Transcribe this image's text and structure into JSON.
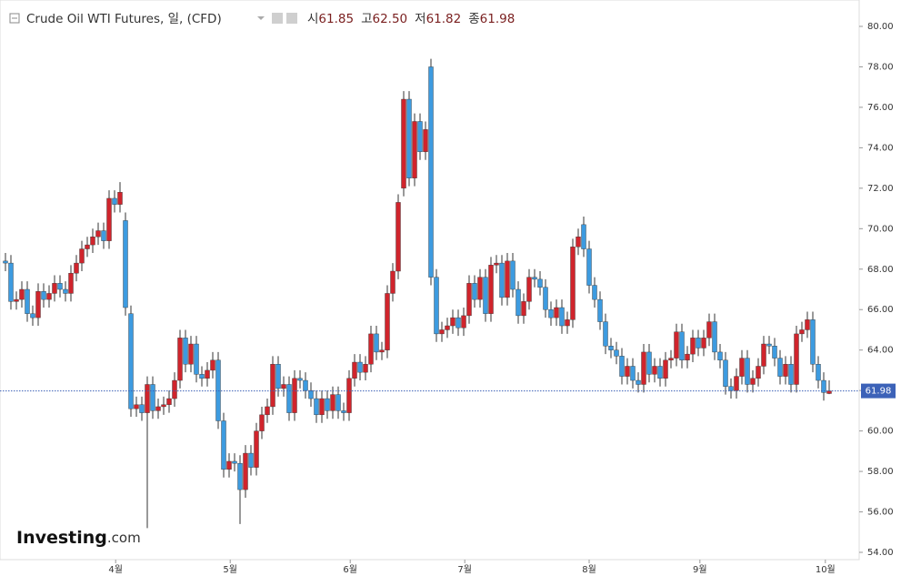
{
  "chart_data": {
    "type": "candlestick",
    "title": "Crude Oil WTI Futures, 일, (CFD)",
    "last_prefix": {
      "open": "시",
      "high": "고",
      "low": "저",
      "close": "종"
    },
    "last_labels": {
      "open": "61.85",
      "high": "62.50",
      "low": "61.82",
      "close": "61.98"
    },
    "logo": {
      "main": "Investing",
      "suffix": ".com"
    },
    "up_color": "#d0242c",
    "down_color": "#3d9be0",
    "xlim": [
      -1,
      156.5
    ],
    "xticks": [
      {
        "value": 20.2,
        "label": "4월"
      },
      {
        "value": 41.2,
        "label": "5월"
      },
      {
        "value": 63.2,
        "label": "6월"
      },
      {
        "value": 84.2,
        "label": "7월"
      },
      {
        "value": 107,
        "label": "8월"
      },
      {
        "value": 127.3,
        "label": "9월"
      },
      {
        "value": 150.3,
        "label": "10월"
      }
    ],
    "ylim": [
      54,
      80
    ],
    "yticks": [
      {
        "value": 54,
        "label": "54.00"
      },
      {
        "value": 56,
        "label": "56.00"
      },
      {
        "value": 58,
        "label": "58.00"
      },
      {
        "value": 60,
        "label": "60.00"
      },
      {
        "value": 62,
        "label": "62.00"
      },
      {
        "value": 64,
        "label": "64.00"
      },
      {
        "value": 66,
        "label": "66.00"
      },
      {
        "value": 68,
        "label": "68.00"
      },
      {
        "value": 70,
        "label": "70.00"
      },
      {
        "value": 72,
        "label": "72.00"
      },
      {
        "value": 74,
        "label": "74.00"
      },
      {
        "value": 76,
        "label": "76.00"
      },
      {
        "value": 78,
        "label": "78.00"
      },
      {
        "value": 80,
        "label": "80.00"
      }
    ],
    "open": [
      68.4,
      68.3,
      66.4,
      66.5,
      67.0,
      65.8,
      65.6,
      66.9,
      66.5,
      66.8,
      67.3,
      67.0,
      66.8,
      67.8,
      68.3,
      69.0,
      69.2,
      69.6,
      69.9,
      69.4,
      71.5,
      71.2,
      70.4,
      65.8,
      61.1,
      61.3,
      60.9,
      62.3,
      61.0,
      61.2,
      61.3,
      61.6,
      62.5,
      64.6,
      63.3,
      64.3,
      62.8,
      62.6,
      63.0,
      63.5,
      60.5,
      58.1,
      58.5,
      58.4,
      57.1,
      58.9,
      58.2,
      60.0,
      60.8,
      61.2,
      63.3,
      62.1,
      62.3,
      60.9,
      62.6,
      62.5,
      62.0,
      61.6,
      60.8,
      61.6,
      61.0,
      61.8,
      61.0,
      60.9,
      62.6,
      63.4,
      62.9,
      63.3,
      64.8,
      63.9,
      64.0,
      66.8,
      67.9,
      72.0,
      76.4,
      72.5,
      75.3,
      73.8,
      78.0,
      67.6,
      64.8,
      65.0,
      65.2,
      65.6,
      65.1,
      65.7,
      67.3,
      66.5,
      67.6,
      65.8,
      68.2,
      68.3,
      66.6,
      68.4,
      67.0,
      65.7,
      66.4,
      67.6,
      67.5,
      67.1,
      66.0,
      65.6,
      66.1,
      65.2,
      65.5,
      69.1,
      70.2,
      69.0,
      67.2,
      66.5,
      65.4,
      64.2,
      64.0,
      63.7,
      62.7,
      63.2,
      62.5,
      62.3,
      63.9,
      62.8,
      63.2,
      62.6,
      63.5,
      63.6,
      64.9,
      63.5,
      63.8,
      64.6,
      64.1,
      64.6,
      65.4,
      63.9,
      63.5,
      62.2,
      62.0,
      62.7,
      63.6,
      62.3,
      62.6,
      63.2,
      64.3,
      64.2,
      63.6,
      62.7,
      63.3,
      62.3,
      64.8,
      65.0,
      65.5,
      63.3,
      62.5,
      61.85
    ],
    "high": [
      68.8,
      68.7,
      66.9,
      67.4,
      67.4,
      66.2,
      67.3,
      67.3,
      67.2,
      67.7,
      67.7,
      67.4,
      68.2,
      68.7,
      69.4,
      69.6,
      70.0,
      70.3,
      70.3,
      71.9,
      71.9,
      72.3,
      70.8,
      66.2,
      61.7,
      61.7,
      62.7,
      62.7,
      61.6,
      61.7,
      62.0,
      62.9,
      65.0,
      65.0,
      64.7,
      64.7,
      63.2,
      63.4,
      63.9,
      63.9,
      60.9,
      58.9,
      58.9,
      58.8,
      59.3,
      59.3,
      60.4,
      61.2,
      61.6,
      63.7,
      63.7,
      62.7,
      62.7,
      63.0,
      63.0,
      62.9,
      62.4,
      62.0,
      62.0,
      62.0,
      62.2,
      62.2,
      61.4,
      63.0,
      63.8,
      63.8,
      63.7,
      65.2,
      65.2,
      64.4,
      67.2,
      68.3,
      71.7,
      76.8,
      76.8,
      75.7,
      75.7,
      75.3,
      78.4,
      68.0,
      65.4,
      65.6,
      66.0,
      66.0,
      66.1,
      67.7,
      67.7,
      68.0,
      68.0,
      68.6,
      68.7,
      68.7,
      68.8,
      68.8,
      67.4,
      66.8,
      68.0,
      68.0,
      67.9,
      67.5,
      66.4,
      66.5,
      66.5,
      65.9,
      69.5,
      70.0,
      70.6,
      69.4,
      67.6,
      66.9,
      65.8,
      64.6,
      64.4,
      64.1,
      63.6,
      63.6,
      62.9,
      64.3,
      64.3,
      63.6,
      63.6,
      63.9,
      64.0,
      65.3,
      65.3,
      64.2,
      65.0,
      65.0,
      65.0,
      65.8,
      65.8,
      64.3,
      63.9,
      62.6,
      63.1,
      64.0,
      64.0,
      63.0,
      63.6,
      64.7,
      64.7,
      64.6,
      64.0,
      63.7,
      63.7,
      65.2,
      65.4,
      65.9,
      65.9,
      63.7,
      62.9,
      62.5
    ],
    "low": [
      67.9,
      66.0,
      66.0,
      66.1,
      65.4,
      65.2,
      65.2,
      66.1,
      66.1,
      66.4,
      66.6,
      66.4,
      66.4,
      67.4,
      67.9,
      68.6,
      68.8,
      69.2,
      69.0,
      69.0,
      70.8,
      70.8,
      65.7,
      60.7,
      60.7,
      60.5,
      55.2,
      60.6,
      60.6,
      60.8,
      60.9,
      61.2,
      62.1,
      62.9,
      62.9,
      62.4,
      62.2,
      62.2,
      62.6,
      60.1,
      57.7,
      57.7,
      58.0,
      55.4,
      56.7,
      57.8,
      57.8,
      59.6,
      60.4,
      60.8,
      61.7,
      61.7,
      60.5,
      60.5,
      62.1,
      61.6,
      61.2,
      60.4,
      60.4,
      60.6,
      60.6,
      60.6,
      60.5,
      60.5,
      62.2,
      62.5,
      62.5,
      62.9,
      63.5,
      63.5,
      63.6,
      66.4,
      67.5,
      71.6,
      72.1,
      72.1,
      73.4,
      73.4,
      67.2,
      64.4,
      64.4,
      64.6,
      64.8,
      64.7,
      64.7,
      65.3,
      66.1,
      66.1,
      65.4,
      65.4,
      67.8,
      66.2,
      66.2,
      66.6,
      65.3,
      65.3,
      66.0,
      67.1,
      66.7,
      65.6,
      65.2,
      65.2,
      64.8,
      64.8,
      65.1,
      68.7,
      68.6,
      66.8,
      66.1,
      65.0,
      63.8,
      63.6,
      63.3,
      62.3,
      62.3,
      62.1,
      61.9,
      61.9,
      62.4,
      62.4,
      62.2,
      62.2,
      63.1,
      63.2,
      63.1,
      63.1,
      63.4,
      63.7,
      63.7,
      64.2,
      63.5,
      63.1,
      61.8,
      61.6,
      61.6,
      62.3,
      61.9,
      61.9,
      62.2,
      62.8,
      63.8,
      63.2,
      62.3,
      62.3,
      61.9,
      61.9,
      64.4,
      64.6,
      62.9,
      62.1,
      61.5,
      61.82
    ],
    "close": [
      68.3,
      66.4,
      66.5,
      67.0,
      65.8,
      65.6,
      66.9,
      66.5,
      66.8,
      67.3,
      67.0,
      66.8,
      67.8,
      68.3,
      69.0,
      69.2,
      69.6,
      69.9,
      69.4,
      71.5,
      71.2,
      71.8,
      66.1,
      61.1,
      61.3,
      60.9,
      62.3,
      61.0,
      61.2,
      61.3,
      61.6,
      62.5,
      64.6,
      63.3,
      64.3,
      62.8,
      62.6,
      63.0,
      63.5,
      60.5,
      58.1,
      58.5,
      58.4,
      57.1,
      58.9,
      58.2,
      60.0,
      60.8,
      61.2,
      63.3,
      62.1,
      62.3,
      60.9,
      62.6,
      62.5,
      62.0,
      61.6,
      60.8,
      61.6,
      61.0,
      61.8,
      61.0,
      60.9,
      62.6,
      63.4,
      62.9,
      63.3,
      64.8,
      63.9,
      64.0,
      66.8,
      67.9,
      71.3,
      76.4,
      72.5,
      75.3,
      73.8,
      74.9,
      67.6,
      64.8,
      65.0,
      65.2,
      65.6,
      65.1,
      65.7,
      67.3,
      66.5,
      67.6,
      65.8,
      68.2,
      68.3,
      66.6,
      68.4,
      67.0,
      65.7,
      66.4,
      67.6,
      67.5,
      67.1,
      66.0,
      65.6,
      66.1,
      65.2,
      65.5,
      69.1,
      69.6,
      69.0,
      67.2,
      66.5,
      65.4,
      64.2,
      64.0,
      63.7,
      62.7,
      63.2,
      62.5,
      62.3,
      63.9,
      62.8,
      63.2,
      62.6,
      63.5,
      63.6,
      64.9,
      63.5,
      63.8,
      64.6,
      64.1,
      64.6,
      65.4,
      63.9,
      63.5,
      62.2,
      62.0,
      62.7,
      63.6,
      62.3,
      62.6,
      63.2,
      64.3,
      64.2,
      63.6,
      62.7,
      63.3,
      62.3,
      64.8,
      65.0,
      65.5,
      63.3,
      62.5,
      61.9,
      61.98
    ]
  }
}
